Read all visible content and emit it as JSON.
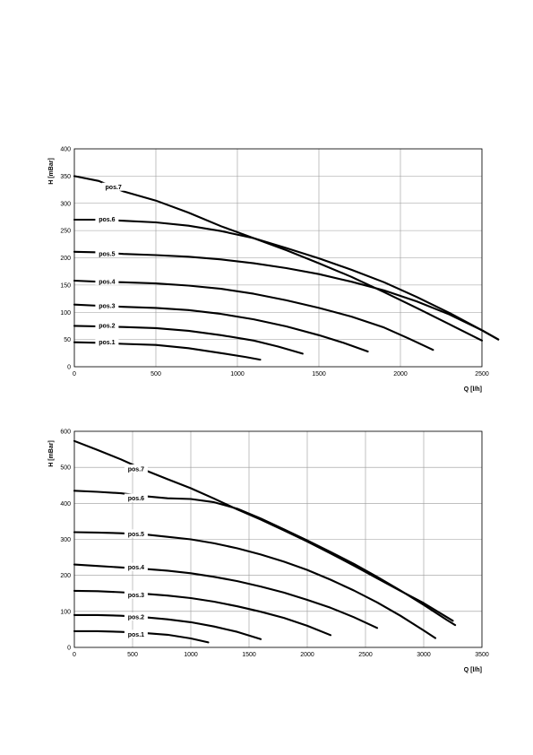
{
  "chart_data": [
    {
      "type": "line",
      "xlabel": "Q [l/h]",
      "ylabel": "H [mBar]",
      "xlim": [
        0,
        2500
      ],
      "ylim": [
        0,
        400
      ],
      "xticks": [
        0,
        500,
        1000,
        1500,
        2000,
        2500
      ],
      "yticks": [
        0,
        50,
        100,
        150,
        200,
        250,
        300,
        350,
        400
      ],
      "grid": true,
      "series": [
        {
          "name": "pos.1",
          "label_at": [
            200,
            44
          ],
          "points": [
            [
              0,
              45
            ],
            [
              150,
              44
            ],
            [
              300,
              42
            ],
            [
              500,
              40
            ],
            [
              700,
              34
            ],
            [
              900,
              25
            ],
            [
              1050,
              18
            ],
            [
              1140,
              13
            ]
          ]
        },
        {
          "name": "pos.2",
          "label_at": [
            200,
            74
          ],
          "points": [
            [
              0,
              75
            ],
            [
              150,
              74
            ],
            [
              300,
              73
            ],
            [
              500,
              71
            ],
            [
              700,
              66
            ],
            [
              900,
              58
            ],
            [
              1100,
              48
            ],
            [
              1250,
              37
            ],
            [
              1400,
              24
            ]
          ]
        },
        {
          "name": "pos.3",
          "label_at": [
            200,
            110
          ],
          "points": [
            [
              0,
              114
            ],
            [
              150,
              112
            ],
            [
              300,
              110
            ],
            [
              500,
              108
            ],
            [
              700,
              104
            ],
            [
              900,
              97
            ],
            [
              1100,
              87
            ],
            [
              1300,
              74
            ],
            [
              1500,
              58
            ],
            [
              1650,
              44
            ],
            [
              1800,
              28
            ]
          ]
        },
        {
          "name": "pos.4",
          "label_at": [
            200,
            155
          ],
          "points": [
            [
              0,
              158
            ],
            [
              150,
              156
            ],
            [
              300,
              155
            ],
            [
              500,
              153
            ],
            [
              700,
              149
            ],
            [
              900,
              143
            ],
            [
              1100,
              134
            ],
            [
              1300,
              122
            ],
            [
              1500,
              108
            ],
            [
              1700,
              92
            ],
            [
              1900,
              72
            ],
            [
              2050,
              52
            ],
            [
              2200,
              31
            ]
          ]
        },
        {
          "name": "pos.5",
          "label_at": [
            200,
            206
          ],
          "points": [
            [
              0,
              211
            ],
            [
              150,
              210
            ],
            [
              300,
              207
            ],
            [
              500,
              205
            ],
            [
              700,
              202
            ],
            [
              900,
              197
            ],
            [
              1100,
              190
            ],
            [
              1300,
              181
            ],
            [
              1500,
              170
            ],
            [
              1700,
              156
            ],
            [
              1900,
              140
            ],
            [
              2100,
              120
            ],
            [
              2300,
              96
            ],
            [
              2500,
              67
            ],
            [
              2600,
              50
            ]
          ]
        },
        {
          "name": "pos.6",
          "label_at": [
            200,
            269
          ],
          "points": [
            [
              0,
              270
            ],
            [
              150,
              270
            ],
            [
              300,
              268
            ],
            [
              500,
              265
            ],
            [
              700,
              259
            ],
            [
              900,
              249
            ],
            [
              1100,
              236
            ],
            [
              1300,
              218
            ],
            [
              1500,
              199
            ],
            [
              1700,
              178
            ],
            [
              1900,
              155
            ],
            [
              2100,
              128
            ],
            [
              2300,
              99
            ],
            [
              2500,
              67
            ],
            [
              2600,
              50
            ]
          ]
        },
        {
          "name": "pos.7",
          "label_at": [
            240,
            328
          ],
          "points": [
            [
              0,
              350
            ],
            [
              150,
              341
            ],
            [
              300,
              322
            ],
            [
              500,
              305
            ],
            [
              700,
              283
            ],
            [
              900,
              258
            ],
            [
              1100,
              236
            ],
            [
              1300,
              214
            ],
            [
              1500,
              190
            ],
            [
              1700,
              165
            ],
            [
              1900,
              137
            ],
            [
              2100,
              108
            ],
            [
              2300,
              78
            ],
            [
              2500,
              48
            ]
          ]
        }
      ]
    },
    {
      "type": "line",
      "xlabel": "Q [l/h]",
      "ylabel": "H [mBar]",
      "xlim": [
        0,
        3500
      ],
      "ylim": [
        0,
        600
      ],
      "xticks": [
        0,
        500,
        1000,
        1500,
        2000,
        2500,
        3000,
        3500
      ],
      "yticks": [
        0,
        100,
        200,
        300,
        400,
        500,
        600
      ],
      "grid": true,
      "series": [
        {
          "name": "pos.1",
          "label_at": [
            530,
            34
          ],
          "points": [
            [
              0,
              45
            ],
            [
              200,
              45
            ],
            [
              400,
              43
            ],
            [
              600,
              40
            ],
            [
              800,
              35
            ],
            [
              1000,
              25
            ],
            [
              1150,
              14
            ]
          ]
        },
        {
          "name": "pos.2",
          "label_at": [
            530,
            82
          ],
          "points": [
            [
              0,
              90
            ],
            [
              200,
              90
            ],
            [
              400,
              88
            ],
            [
              600,
              84
            ],
            [
              800,
              78
            ],
            [
              1000,
              70
            ],
            [
              1200,
              58
            ],
            [
              1400,
              43
            ],
            [
              1600,
              23
            ]
          ]
        },
        {
          "name": "pos.3",
          "label_at": [
            530,
            143
          ],
          "points": [
            [
              0,
              157
            ],
            [
              200,
              156
            ],
            [
              400,
              153
            ],
            [
              600,
              149
            ],
            [
              800,
              144
            ],
            [
              1000,
              137
            ],
            [
              1200,
              127
            ],
            [
              1400,
              114
            ],
            [
              1600,
              99
            ],
            [
              1800,
              82
            ],
            [
              2000,
              60
            ],
            [
              2200,
              34
            ]
          ]
        },
        {
          "name": "pos.4",
          "label_at": [
            530,
            220
          ],
          "points": [
            [
              0,
              230
            ],
            [
              200,
              226
            ],
            [
              400,
              222
            ],
            [
              600,
              218
            ],
            [
              800,
              213
            ],
            [
              1000,
              206
            ],
            [
              1200,
              196
            ],
            [
              1400,
              184
            ],
            [
              1600,
              169
            ],
            [
              1800,
              152
            ],
            [
              2000,
              132
            ],
            [
              2200,
              110
            ],
            [
              2400,
              84
            ],
            [
              2600,
              54
            ]
          ]
        },
        {
          "name": "pos.5",
          "label_at": [
            530,
            313
          ],
          "points": [
            [
              0,
              320
            ],
            [
              200,
              319
            ],
            [
              400,
              317
            ],
            [
              600,
              314
            ],
            [
              800,
              307
            ],
            [
              1000,
              300
            ],
            [
              1200,
              289
            ],
            [
              1400,
              275
            ],
            [
              1600,
              258
            ],
            [
              1800,
              238
            ],
            [
              2000,
              215
            ],
            [
              2200,
              188
            ],
            [
              2400,
              158
            ],
            [
              2600,
              125
            ],
            [
              2800,
              88
            ],
            [
              3000,
              47
            ],
            [
              3100,
              26
            ]
          ]
        },
        {
          "name": "pos.6",
          "label_at": [
            530,
            412
          ],
          "points": [
            [
              0,
              435
            ],
            [
              200,
              432
            ],
            [
              400,
              428
            ],
            [
              600,
              420
            ],
            [
              800,
              414
            ],
            [
              1000,
              412
            ],
            [
              1200,
              403
            ],
            [
              1400,
              385
            ],
            [
              1600,
              358
            ],
            [
              1800,
              328
            ],
            [
              2000,
              297
            ],
            [
              2200,
              265
            ],
            [
              2400,
              232
            ],
            [
              2600,
              196
            ],
            [
              2800,
              158
            ],
            [
              3000,
              118
            ],
            [
              3200,
              76
            ],
            [
              3270,
              62
            ]
          ]
        },
        {
          "name": "pos.7",
          "label_at": [
            530,
            493
          ],
          "points": [
            [
              0,
              573
            ],
            [
              200,
              548
            ],
            [
              400,
              522
            ],
            [
              600,
              493
            ],
            [
              800,
              467
            ],
            [
              1000,
              442
            ],
            [
              1200,
              413
            ],
            [
              1400,
              383
            ],
            [
              1600,
              355
            ],
            [
              1800,
              325
            ],
            [
              2000,
              294
            ],
            [
              2200,
              261
            ],
            [
              2400,
              227
            ],
            [
              2600,
              192
            ],
            [
              2800,
              157
            ],
            [
              3000,
              123
            ],
            [
              3250,
              74
            ]
          ]
        }
      ]
    }
  ]
}
